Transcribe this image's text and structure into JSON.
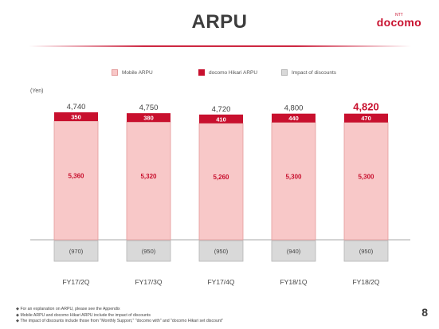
{
  "title": "ARPU",
  "logo": {
    "small_text": "NTT",
    "brand": "docomo"
  },
  "legend": {
    "mobile": {
      "label": "Mobile ARPU",
      "fill": "#f8c8c8",
      "stroke": "#e39a9a"
    },
    "hikari": {
      "label": "docomo Hikari ARPU",
      "fill": "#c8102e",
      "stroke": "#c8102e"
    },
    "discount": {
      "label": "Impact of discounts",
      "fill": "#d9d9d9",
      "stroke": "#b5b5b5"
    }
  },
  "unit_label": "(Yen)",
  "chart_data": {
    "type": "bar",
    "stacked": true,
    "categories": [
      "FY17/2Q",
      "FY17/3Q",
      "FY17/4Q",
      "FY18/1Q",
      "FY18/2Q"
    ],
    "series": [
      {
        "name": "Mobile ARPU",
        "values": [
          5360,
          5320,
          5260,
          5300,
          5300
        ],
        "labels": [
          "5,360",
          "5,320",
          "5,260",
          "5,300",
          "5,300"
        ]
      },
      {
        "name": "docomo Hikari ARPU",
        "values": [
          350,
          380,
          410,
          440,
          470
        ],
        "labels": [
          "350",
          "380",
          "410",
          "440",
          "470"
        ]
      },
      {
        "name": "Impact of discounts",
        "values": [
          -970,
          -950,
          -950,
          -940,
          -950
        ],
        "labels": [
          "(970)",
          "(950)",
          "(950)",
          "(940)",
          "(950)"
        ]
      }
    ],
    "totals": [
      4740,
      4750,
      4720,
      4800,
      4820
    ],
    "total_labels": [
      "4,740",
      "4,750",
      "4,720",
      "4,800",
      "4,820"
    ],
    "highlight_index": 4,
    "highlight_color": "#c8102e",
    "ylabel": "(Yen)"
  },
  "footnotes": [
    "For an explanation on ARPU, please see the Appendix",
    "Mobile ARPU and docomo Hikari ARPU include the impact of discounts",
    "The impact of discounts include those from \"Monthly Support,\" \"docomo with\" and \"docomo Hikari set discount\""
  ],
  "page_number": "8"
}
